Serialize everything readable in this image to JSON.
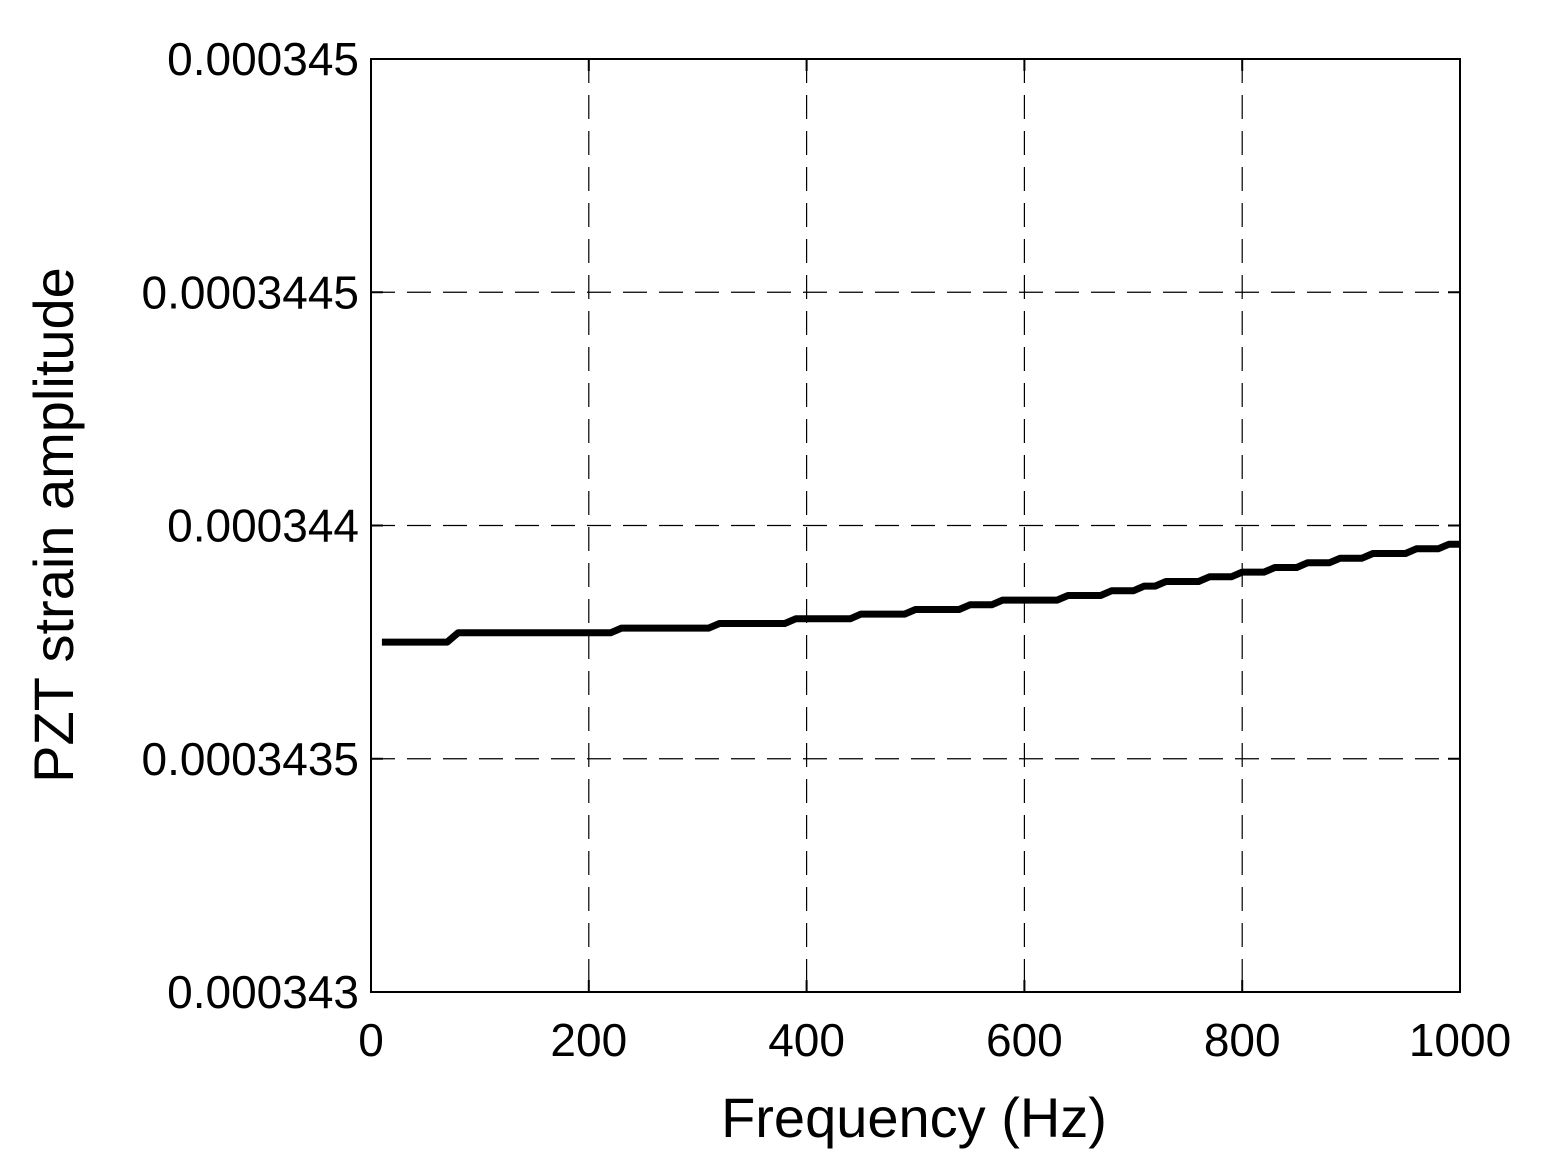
{
  "chart_data": {
    "type": "line",
    "title": "",
    "xlabel": "Frequency (Hz)",
    "ylabel": "PZT strain amplitude",
    "xlim": [
      0,
      1000
    ],
    "ylim": [
      0.000343,
      0.000345
    ],
    "x_ticks": [
      0,
      200,
      400,
      600,
      800,
      1000
    ],
    "x_tick_labels": [
      "0",
      "200",
      "400",
      "600",
      "800",
      "1000"
    ],
    "y_ticks": [
      0.000343,
      0.0003435,
      0.000344,
      0.0003445,
      0.000345
    ],
    "y_tick_labels": [
      "0.000343",
      "0.0003435",
      "0.000344",
      "0.0003445",
      "0.000345"
    ],
    "grid": true,
    "grid_style": "dashed",
    "line_color": "#000000",
    "background": "#ffffff",
    "series": [
      {
        "x": [
          10,
          70,
          80,
          150,
          220,
          230,
          310,
          320,
          380,
          390,
          440,
          450,
          490,
          500,
          540,
          550,
          570,
          580,
          630,
          640,
          670,
          680,
          700,
          710,
          720,
          730,
          760,
          770,
          790,
          800,
          820,
          830,
          850,
          860,
          880,
          890,
          910,
          920,
          950,
          960,
          980,
          990,
          1000
        ],
        "y": [
          0.00034375,
          0.00034375,
          0.00034377,
          0.00034377,
          0.00034377,
          0.00034378,
          0.00034378,
          0.00034379,
          0.00034379,
          0.0003438,
          0.0003438,
          0.00034381,
          0.00034381,
          0.00034382,
          0.00034382,
          0.00034383,
          0.00034383,
          0.00034384,
          0.00034384,
          0.00034385,
          0.00034385,
          0.00034386,
          0.00034386,
          0.00034387,
          0.00034387,
          0.00034388,
          0.00034388,
          0.00034389,
          0.00034389,
          0.0003439,
          0.0003439,
          0.00034391,
          0.00034391,
          0.00034392,
          0.00034392,
          0.00034393,
          0.00034393,
          0.00034394,
          0.00034394,
          0.00034395,
          0.00034395,
          0.00034396,
          0.00034396
        ]
      }
    ]
  }
}
